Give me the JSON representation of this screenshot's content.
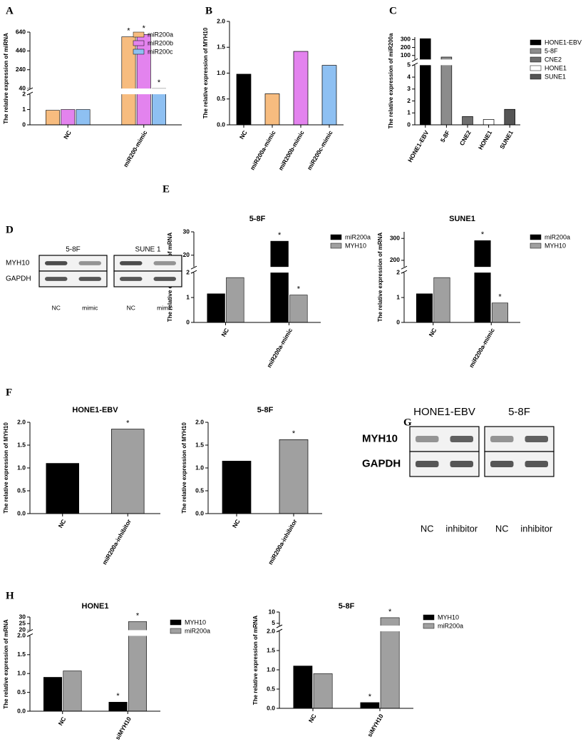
{
  "chart_data": [
    {
      "type": "bar",
      "panel": "A",
      "ylabel": "The relative expression of miRNA",
      "categories": [
        "NC",
        "miR200-mimic"
      ],
      "series": [
        {
          "name": "miR200a",
          "color": "#f7bc7f",
          "values": [
            0.95,
            590
          ]
        },
        {
          "name": "miR200b",
          "color": "#e383ee",
          "values": [
            1.0,
            615
          ]
        },
        {
          "name": "miR200c",
          "color": "#8ec0f2",
          "values": [
            1.0,
            40
          ]
        }
      ],
      "ylim_segments": [
        [
          0,
          2
        ],
        [
          40,
          640
        ]
      ],
      "yticks": [
        0,
        1,
        2,
        40,
        240,
        440,
        640
      ],
      "legend": "upper right",
      "annotations": [
        {
          "text": "*",
          "series": "miR200a",
          "category": "miR200-mimic"
        },
        {
          "text": "*",
          "series": "miR200b",
          "category": "miR200-mimic"
        },
        {
          "text": "*",
          "series": "miR200c",
          "category": "miR200-mimic"
        }
      ]
    },
    {
      "type": "bar",
      "panel": "B",
      "ylabel": "The relative expression of MYH10",
      "categories": [
        "NC",
        "miR200a-mimic",
        "miR200b-mimic",
        "miR200c-mimic"
      ],
      "values": [
        0.98,
        0.6,
        1.42,
        1.15
      ],
      "colors": [
        "#000000",
        "#f7bc7f",
        "#e383ee",
        "#8ec0f2"
      ],
      "ylim": [
        0,
        2
      ],
      "yticks": [
        {
          "value": 0,
          "label": "0.0"
        },
        0.5,
        {
          "value": 1,
          "label": "1.0"
        },
        1.5,
        {
          "value": 2,
          "label": "2.0"
        }
      ]
    },
    {
      "type": "bar",
      "panel": "C",
      "ylabel": "The relative expression of miR200a",
      "categories": [
        "HONE1-EBV",
        "5-8F",
        "CNE2",
        "HONE1",
        "SUNE1"
      ],
      "values": [
        310,
        80,
        0.7,
        0.45,
        1.3
      ],
      "colors": [
        "#000000",
        "#8c8c8c",
        "#6e6e6e",
        "#ffffff",
        "#555555"
      ],
      "ylim_segments": [
        [
          0,
          5
        ],
        [
          50,
          330
        ]
      ],
      "yticks": [
        0,
        1,
        2,
        3,
        4,
        5,
        100,
        200,
        300
      ],
      "legend": "right"
    },
    {
      "type": "bar",
      "panel": "E",
      "title": "5-8F",
      "ylabel": "The relative expression of mRNA",
      "categories": [
        "NC",
        "miR200a-mimic"
      ],
      "series": [
        {
          "name": "miR200a",
          "color": "#000000",
          "values": [
            1.15,
            26
          ]
        },
        {
          "name": "MYH10",
          "color": "#a0a0a0",
          "values": [
            1.8,
            1.1
          ]
        }
      ],
      "ylim_segments": [
        [
          0,
          2
        ],
        [
          15,
          30
        ]
      ],
      "yticks": [
        0,
        1,
        2,
        20,
        30
      ],
      "legend": "right",
      "annotations": [
        {
          "text": "*",
          "series": "miR200a",
          "category": "miR200a-mimic"
        },
        {
          "text": "*",
          "series": "MYH10",
          "category": "miR200a-mimic"
        }
      ]
    },
    {
      "type": "bar",
      "title": "SUNE1",
      "ylabel": "The relative expression of mRNA",
      "categories": [
        "NC",
        "miR200a-mimic"
      ],
      "series": [
        {
          "name": "miR200a",
          "color": "#000000",
          "values": [
            1.15,
            290
          ]
        },
        {
          "name": "MYH10",
          "color": "#a0a0a0",
          "values": [
            1.8,
            0.78
          ]
        }
      ],
      "ylim_segments": [
        [
          0,
          2
        ],
        [
          170,
          330
        ]
      ],
      "yticks": [
        0,
        1,
        2,
        200,
        300
      ],
      "legend": "right",
      "annotations": [
        {
          "text": "*",
          "series": "miR200a",
          "category": "miR200a-mimic"
        },
        {
          "text": "*",
          "series": "MYH10",
          "category": "miR200a-mimic"
        }
      ]
    },
    {
      "type": "bar",
      "panel": "F",
      "title": "HONE1-EBV",
      "ylabel": "The relative expression of MYH10",
      "categories": [
        "NC",
        "miR200a-inhibitor"
      ],
      "values": [
        1.1,
        1.85
      ],
      "colors": [
        "#000000",
        "#a0a0a0"
      ],
      "ylim": [
        0,
        2
      ],
      "yticks": [
        {
          "value": 0,
          "label": "0.0"
        },
        0.5,
        {
          "value": 1,
          "label": "1.0"
        },
        1.5,
        {
          "value": 2,
          "label": "2.0"
        }
      ],
      "annotations": [
        {
          "text": "*",
          "category": "miR200a-inhibitor"
        }
      ]
    },
    {
      "type": "bar",
      "title": "5-8F",
      "ylabel": "The relative expression of MYH10",
      "categories": [
        "NC",
        "miR200a-inhibitor"
      ],
      "values": [
        1.15,
        1.62
      ],
      "colors": [
        "#000000",
        "#a0a0a0"
      ],
      "ylim": [
        0,
        2
      ],
      "yticks": [
        {
          "value": 0,
          "label": "0.0"
        },
        0.5,
        {
          "value": 1,
          "label": "1.0"
        },
        1.5,
        {
          "value": 2,
          "label": "2.0"
        }
      ],
      "annotations": [
        {
          "text": "*",
          "category": "miR200a-inhibitor"
        }
      ]
    },
    {
      "type": "bar",
      "panel": "H",
      "title": "HONE1",
      "ylabel": "The relative expression of mRNA",
      "categories": [
        "NC",
        "siMYH10"
      ],
      "series": [
        {
          "name": "MYH10",
          "color": "#000000",
          "values": [
            0.9,
            0.24
          ]
        },
        {
          "name": "miR200a",
          "color": "#a0a0a0",
          "values": [
            1.07,
            26.5
          ]
        }
      ],
      "ylim_segments": [
        [
          0,
          2
        ],
        [
          20,
          30
        ]
      ],
      "yticks": [
        {
          "value": 0,
          "label": "0.0"
        },
        0.5,
        {
          "value": 1,
          "label": "1.0"
        },
        1.5,
        {
          "value": 2,
          "label": "2.0"
        },
        20,
        25,
        30
      ],
      "legend": "right",
      "annotations": [
        {
          "text": "*",
          "series": "MYH10",
          "category": "siMYH10"
        },
        {
          "text": "*",
          "series": "miR200a",
          "category": "siMYH10"
        }
      ]
    },
    {
      "type": "bar",
      "title": "5-8F",
      "ylabel": "The relative expression of mRNA",
      "categories": [
        "NC",
        "siMYH10"
      ],
      "series": [
        {
          "name": "MYH10",
          "color": "#000000",
          "values": [
            1.1,
            0.15
          ]
        },
        {
          "name": "miR200a",
          "color": "#a0a0a0",
          "values": [
            0.9,
            7.5
          ]
        }
      ],
      "ylim_segments": [
        [
          0,
          2
        ],
        [
          4,
          10
        ]
      ],
      "yticks": [
        {
          "value": 0,
          "label": "0.0"
        },
        0.5,
        {
          "value": 1,
          "label": "1.0"
        },
        1.5,
        {
          "value": 2,
          "label": "2.0"
        },
        5,
        10
      ],
      "legend": "right",
      "annotations": [
        {
          "text": "*",
          "series": "MYH10",
          "category": "siMYH10"
        },
        {
          "text": "*",
          "series": "miR200a",
          "category": "siMYH10"
        }
      ]
    }
  ],
  "blots": [
    {
      "panel": "D",
      "rows": [
        "MYH10",
        "GAPDH"
      ],
      "groups": [
        {
          "title": "5-8F",
          "lanes": [
            "NC",
            "mimic"
          ]
        },
        {
          "title": "SUNE 1",
          "lanes": [
            "NC",
            "mimic"
          ]
        }
      ]
    },
    {
      "panel": "G",
      "rows": [
        "MYH10",
        "GAPDH"
      ],
      "groups": [
        {
          "title": "HONE1-EBV",
          "lanes": [
            "NC",
            "inhibitor"
          ]
        },
        {
          "title": "5-8F",
          "lanes": [
            "NC",
            "inhibitor"
          ]
        }
      ]
    }
  ]
}
